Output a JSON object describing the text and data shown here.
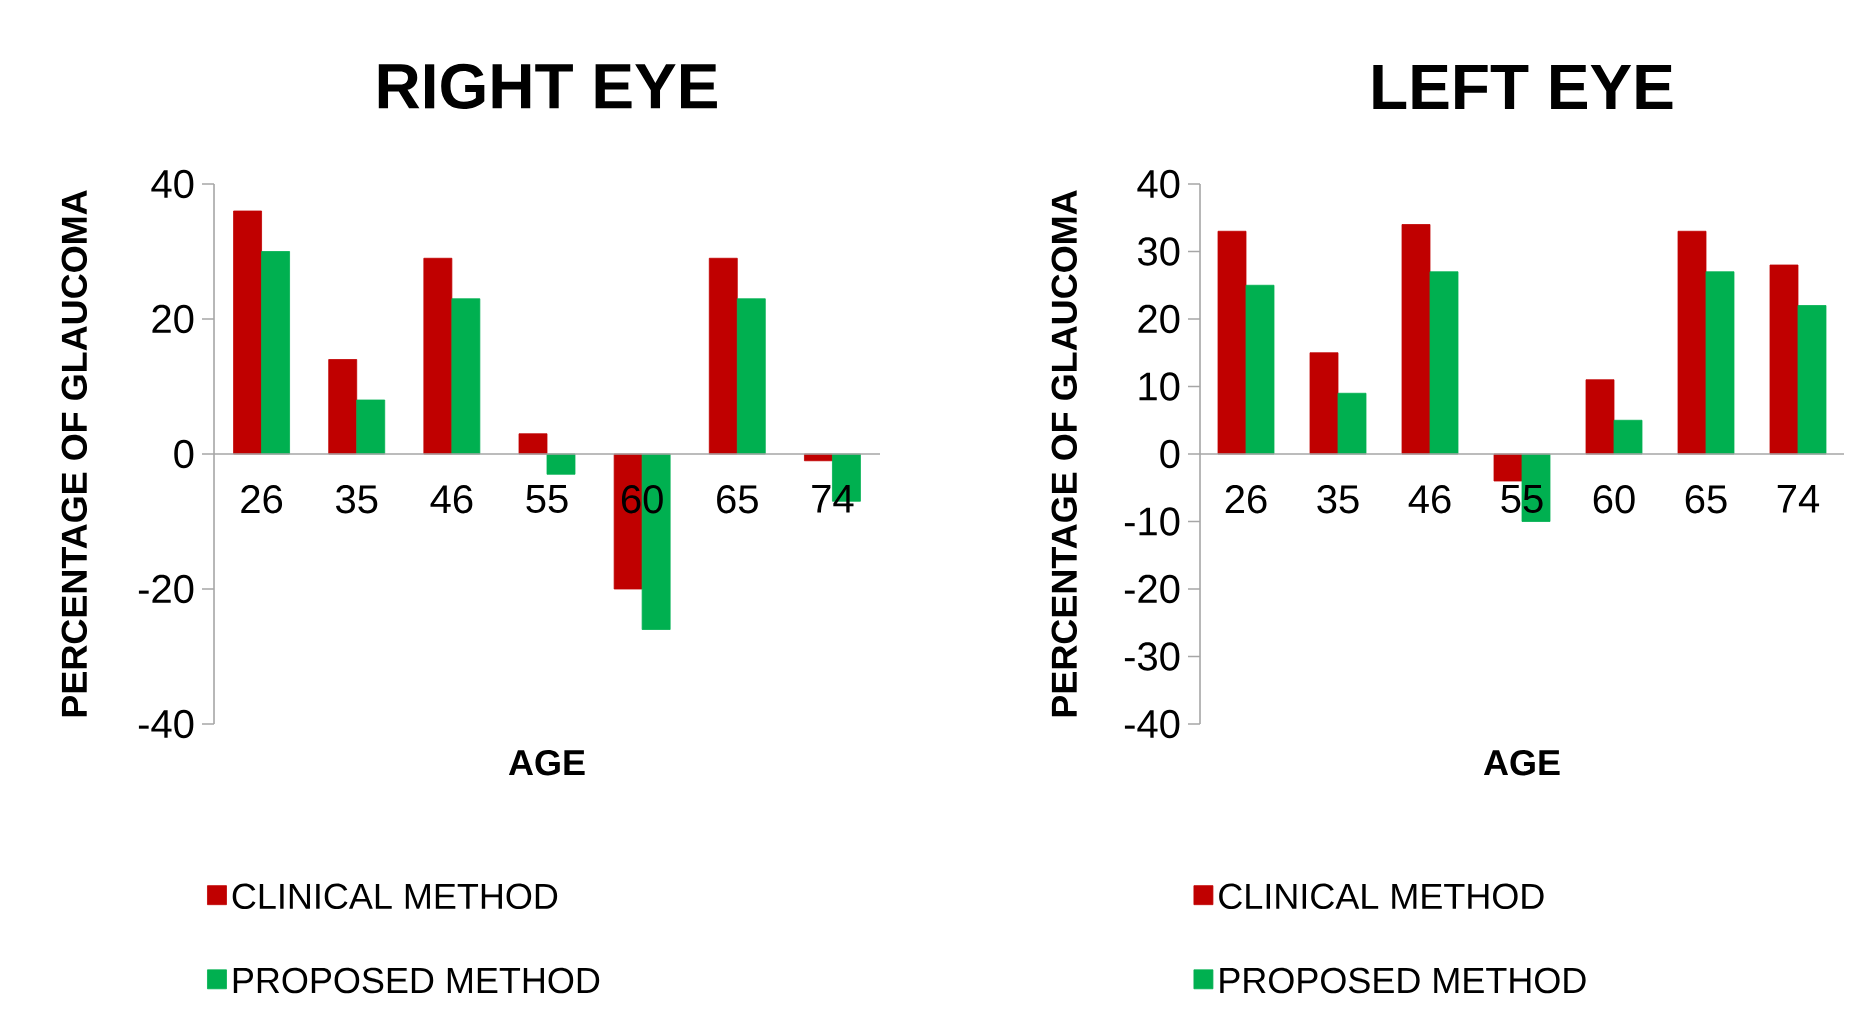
{
  "chart_data": [
    {
      "type": "bar",
      "title": "RIGHT EYE",
      "xlabel": "AGE",
      "ylabel": "PERCENTAGE OF GLAUCOMA",
      "categories": [
        "26",
        "35",
        "46",
        "55",
        "60",
        "65",
        "74"
      ],
      "series": [
        {
          "name": "CLINICAL METHOD",
          "color": "#c00000",
          "values": [
            36,
            14,
            29,
            3,
            -20,
            29,
            -1
          ]
        },
        {
          "name": "PROPOSED METHOD",
          "color": "#00b050",
          "values": [
            30,
            8,
            23,
            -3,
            -26,
            23,
            -7
          ]
        }
      ],
      "ylim": [
        -40,
        40
      ],
      "yticks": [
        -40,
        -20,
        0,
        20,
        40
      ],
      "legend": "bottom"
    },
    {
      "type": "bar",
      "title": "LEFT EYE",
      "xlabel": "AGE",
      "ylabel": "PERCENTAGE OF GLAUCOMA",
      "categories": [
        "26",
        "35",
        "46",
        "55",
        "60",
        "65",
        "74"
      ],
      "series": [
        {
          "name": "CLINICAL METHOD",
          "color": "#c00000",
          "values": [
            33,
            15,
            34,
            -4,
            11,
            33,
            28
          ]
        },
        {
          "name": "PROPOSED METHOD",
          "color": "#00b050",
          "values": [
            25,
            9,
            27,
            -10,
            5,
            27,
            22
          ]
        }
      ],
      "ylim": [
        -40,
        40
      ],
      "yticks": [
        -40,
        -30,
        -20,
        -10,
        0,
        10,
        20,
        30,
        40
      ],
      "legend": "bottom"
    }
  ]
}
